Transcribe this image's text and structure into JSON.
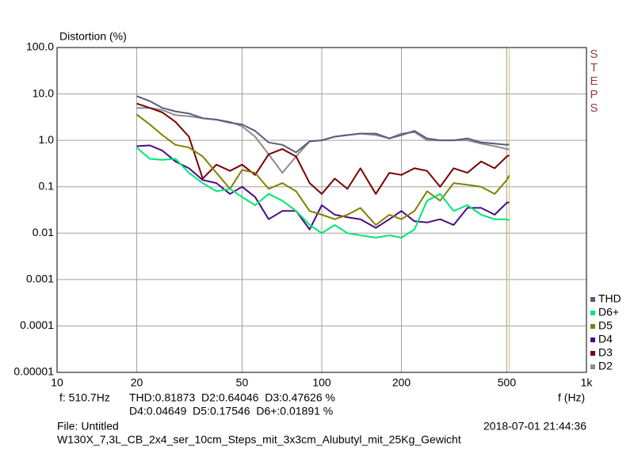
{
  "chart_data": {
    "type": "line",
    "y_label": "Distortion (%)",
    "x_label": "f (Hz)",
    "side_label": "STEPS",
    "log_x": true,
    "log_y": true,
    "grid": true,
    "legend": "right",
    "xlim": [
      10,
      1000
    ],
    "ylim": [
      1e-05,
      100
    ],
    "xticks": [
      10,
      20,
      50,
      100,
      200,
      500,
      {
        "value": 1000,
        "label": "1k"
      }
    ],
    "yticks": [
      {
        "value": 100,
        "label": "100.0"
      },
      {
        "value": 10,
        "label": "10.0"
      },
      {
        "value": 1,
        "label": "1.0"
      },
      0.1,
      0.01,
      0.001,
      0.0001,
      {
        "value": 1e-05,
        "label": "0.00001"
      }
    ],
    "cursor_x": 510.7,
    "cursor_label": "f: 510.7Hz",
    "readout_line1": "THD:0.81873  D2:0.64046  D3:0.47626 %",
    "readout_line2": "D4:0.04649  D5:0.17546  D6+:0.01891 %",
    "file_label": "File: Untitled",
    "timestamp": "2018-07-01 21:44:36",
    "description": "W130X_7,3L_CB_2x4_ser_10cm_Steps_mit_3x3cm_Alubutyl_mit_25Kg_Gewicht",
    "x": [
      20,
      22.4,
      25,
      28,
      31.5,
      35.5,
      40,
      45,
      50,
      56,
      63,
      71,
      80,
      90,
      100,
      112,
      125,
      140,
      160,
      180,
      200,
      224,
      250,
      280,
      315,
      355,
      400,
      450,
      500,
      510.7
    ],
    "series": [
      {
        "name": "THD",
        "color": "#5b5b7d",
        "values": [
          9,
          7,
          5,
          4.2,
          3.8,
          3.0,
          2.8,
          2.4,
          2.2,
          1.6,
          0.9,
          0.8,
          0.55,
          0.95,
          1.0,
          1.2,
          1.3,
          1.4,
          1.4,
          1.1,
          1.3,
          1.6,
          1.1,
          1.0,
          1.0,
          1.1,
          0.9,
          0.85,
          0.8,
          0.81873
        ]
      },
      {
        "name": "D6+",
        "color": "#00e676",
        "values": [
          0.7,
          0.4,
          0.38,
          0.4,
          0.2,
          0.12,
          0.08,
          0.09,
          0.06,
          0.04,
          0.07,
          0.05,
          0.03,
          0.015,
          0.01,
          0.015,
          0.01,
          0.009,
          0.008,
          0.009,
          0.008,
          0.012,
          0.05,
          0.07,
          0.03,
          0.04,
          0.025,
          0.02,
          0.02,
          0.01891
        ]
      },
      {
        "name": "D5",
        "color": "#808000",
        "values": [
          3.6,
          2.2,
          1.3,
          0.8,
          0.7,
          0.45,
          0.2,
          0.09,
          0.23,
          0.2,
          0.09,
          0.12,
          0.08,
          0.03,
          0.025,
          0.02,
          0.025,
          0.035,
          0.015,
          0.025,
          0.02,
          0.03,
          0.08,
          0.05,
          0.12,
          0.11,
          0.1,
          0.07,
          0.14,
          0.17546
        ]
      },
      {
        "name": "D4",
        "color": "#4b0b82",
        "values": [
          0.75,
          0.78,
          0.6,
          0.35,
          0.25,
          0.14,
          0.12,
          0.07,
          0.1,
          0.06,
          0.02,
          0.03,
          0.03,
          0.012,
          0.04,
          0.025,
          0.022,
          0.02,
          0.013,
          0.02,
          0.03,
          0.018,
          0.017,
          0.02,
          0.015,
          0.035,
          0.035,
          0.025,
          0.045,
          0.04649
        ]
      },
      {
        "name": "D3",
        "color": "#7b0000",
        "values": [
          6.2,
          5,
          4,
          2.5,
          1.2,
          0.15,
          0.3,
          0.22,
          0.3,
          0.18,
          0.5,
          0.65,
          0.45,
          0.12,
          0.07,
          0.15,
          0.09,
          0.25,
          0.07,
          0.2,
          0.18,
          0.25,
          0.22,
          0.1,
          0.25,
          0.2,
          0.35,
          0.25,
          0.45,
          0.47626
        ]
      },
      {
        "name": "D2",
        "color": "#8c8c8c",
        "values": [
          5,
          5,
          4.5,
          3.5,
          3.3,
          3.0,
          2.8,
          2.5,
          2.0,
          1.2,
          0.5,
          0.2,
          0.45,
          0.95,
          1.0,
          1.2,
          1.3,
          1.4,
          1.3,
          1.1,
          1.4,
          1.5,
          1.0,
          1.0,
          1.0,
          1.0,
          0.85,
          0.75,
          0.65,
          0.64046
        ]
      }
    ]
  }
}
